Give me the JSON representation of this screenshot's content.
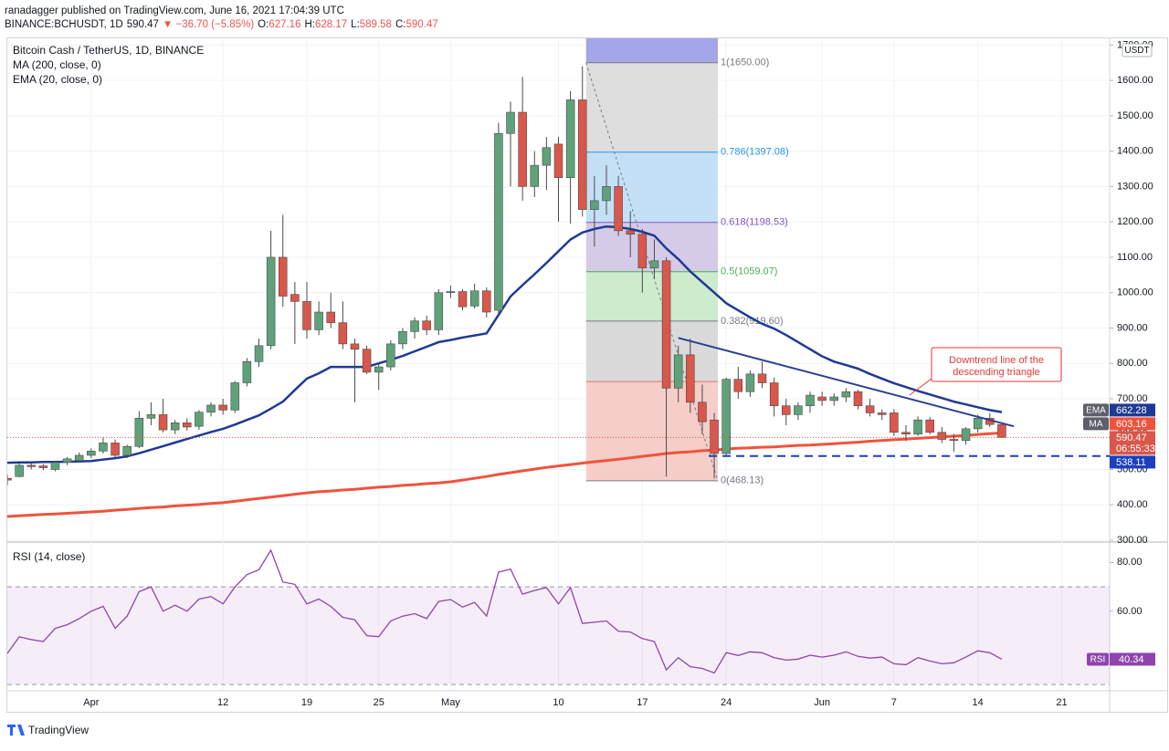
{
  "header": {
    "byline": "ranadagger published on TradingView.com, June 16, 2021 17:04:39 UTC",
    "symbol": "BINANCE:BCHUSDT, 1D",
    "last": "590.47",
    "change": "▼ −36.70 (−5.85%)",
    "ohlc": [
      [
        "O:",
        "627.16"
      ],
      [
        "H:",
        "628.17"
      ],
      [
        "L:",
        "589.58"
      ],
      [
        "C:",
        "590.47"
      ]
    ]
  },
  "footer": "TradingView",
  "chart_data": [
    {
      "type": "candlestick",
      "currency": "USDT",
      "countdown": "06:55:33",
      "candles": {
        "name": "Bitcoin Cash / TetherUS, 1D, BINANCE",
        "up_color": "#5fa27a",
        "down_color": "#d9574b",
        "wick_color": "#4a4a4a",
        "x": [
          "Mar 25",
          "Mar 26",
          "Mar 27",
          "Mar 28",
          "Mar 29",
          "Mar 30",
          "Mar 31",
          "Apr 1",
          "Apr 2",
          "Apr 3",
          "Apr 4",
          "Apr 5",
          "Apr 6",
          "Apr 7",
          "Apr 8",
          "Apr 9",
          "Apr 10",
          "Apr 11",
          "Apr 12",
          "Apr 13",
          "Apr 14",
          "Apr 15",
          "Apr 16",
          "Apr 17",
          "Apr 18",
          "Apr 19",
          "Apr 20",
          "Apr 21",
          "Apr 22",
          "Apr 23",
          "Apr 24",
          "Apr 25",
          "Apr 26",
          "Apr 27",
          "Apr 28",
          "Apr 29",
          "Apr 30",
          "May 1",
          "May 2",
          "May 3",
          "May 4",
          "May 5",
          "May 6",
          "May 7",
          "May 8",
          "May 9",
          "May 10",
          "May 11",
          "May 12",
          "May 13",
          "May 14",
          "May 15",
          "May 16",
          "May 17",
          "May 18",
          "May 19",
          "May 20",
          "May 21",
          "May 22",
          "May 23",
          "May 24",
          "May 25",
          "May 26",
          "May 27",
          "May 28",
          "May 29",
          "May 30",
          "May 31",
          "Jun 1",
          "Jun 2",
          "Jun 3",
          "Jun 4",
          "Jun 5",
          "Jun 6",
          "Jun 7",
          "Jun 8",
          "Jun 9",
          "Jun 10",
          "Jun 11",
          "Jun 12",
          "Jun 13",
          "Jun 14",
          "Jun 15",
          "Jun 16"
        ],
        "open": [
          475,
          480,
          512,
          510,
          500,
          520,
          525,
          540,
          552,
          575,
          540,
          565,
          645,
          655,
          612,
          632,
          622,
          662,
          682,
          668,
          745,
          805,
          850,
          1100,
          995,
          975,
          895,
          945,
          915,
          855,
          840,
          775,
          790,
          855,
          890,
          920,
          895,
          1000,
          1003,
          962,
          1005,
          950,
          1450,
          1510,
          1300,
          1360,
          1420,
          1325,
          1545,
          1235,
          1260,
          1300,
          1175,
          1165,
          1070,
          1090,
          730,
          824,
          690,
          640,
          545,
          755,
          720,
          770,
          745,
          680,
          655,
          680,
          705,
          695,
          705,
          720,
          680,
          660,
          660,
          605,
          600,
          640,
          605,
          585,
          582,
          615,
          645,
          627.16
        ],
        "high": [
          485,
          518,
          520,
          515,
          525,
          535,
          548,
          560,
          590,
          585,
          570,
          665,
          690,
          700,
          640,
          645,
          668,
          690,
          700,
          750,
          815,
          870,
          1175,
          1220,
          1030,
          1030,
          975,
          1000,
          975,
          870,
          850,
          800,
          865,
          900,
          930,
          935,
          1010,
          1020,
          1010,
          1025,
          1015,
          1480,
          1540,
          1610,
          1400,
          1440,
          1440,
          1570,
          1640,
          1330,
          1360,
          1330,
          1230,
          1180,
          1150,
          1100,
          850,
          870,
          740,
          660,
          760,
          790,
          780,
          805,
          760,
          700,
          690,
          720,
          720,
          715,
          730,
          725,
          700,
          670,
          670,
          625,
          650,
          648,
          620,
          600,
          620,
          655,
          660,
          628.17
        ],
        "low": [
          455,
          478,
          500,
          498,
          495,
          512,
          520,
          532,
          545,
          535,
          532,
          560,
          625,
          605,
          600,
          610,
          612,
          650,
          655,
          660,
          735,
          790,
          840,
          960,
          855,
          870,
          880,
          900,
          840,
          690,
          770,
          725,
          780,
          840,
          870,
          880,
          880,
          985,
          950,
          955,
          930,
          940,
          1300,
          1260,
          1270,
          1290,
          1200,
          1195,
          1215,
          1130,
          1220,
          1160,
          1100,
          1000,
          1040,
          480,
          690,
          660,
          600,
          475,
          540,
          700,
          705,
          730,
          650,
          625,
          640,
          660,
          680,
          680,
          690,
          670,
          650,
          640,
          595,
          580,
          595,
          600,
          575,
          550,
          570,
          605,
          620,
          589.58
        ],
        "close": [
          470,
          512,
          508,
          505,
          520,
          530,
          540,
          552,
          575,
          540,
          565,
          645,
          655,
          612,
          632,
          620,
          662,
          682,
          668,
          745,
          805,
          850,
          1100,
          990,
          975,
          895,
          945,
          915,
          855,
          840,
          775,
          790,
          855,
          890,
          920,
          895,
          1000,
          1003,
          960,
          1005,
          945,
          1450,
          1510,
          1300,
          1360,
          1410,
          1325,
          1545,
          1235,
          1260,
          1300,
          1175,
          1165,
          1070,
          1090,
          730,
          824,
          690,
          635,
          545,
          755,
          720,
          770,
          745,
          680,
          655,
          680,
          710,
          695,
          705,
          720,
          680,
          660,
          655,
          605,
          600,
          640,
          605,
          585,
          582,
          615,
          645,
          627.16,
          590.47
        ]
      },
      "series": [
        {
          "name": "MA (200, close, 0)",
          "badge": "MA",
          "color": "#f0533c",
          "values": [
            367,
            369,
            371,
            373,
            374,
            376,
            378,
            380,
            382,
            385,
            387,
            390,
            392,
            394,
            397,
            399,
            401,
            404,
            406,
            410,
            414,
            418,
            422,
            426,
            430,
            434,
            437,
            439,
            442,
            444,
            447,
            450,
            452,
            455,
            457,
            460,
            462,
            465,
            470,
            475,
            480,
            486,
            491,
            496,
            501,
            506,
            510,
            514,
            518,
            522,
            525,
            529,
            533,
            537,
            541,
            545,
            548,
            550,
            553,
            555,
            558,
            560,
            561,
            563,
            564,
            566,
            568,
            569,
            571,
            573,
            575,
            577,
            580,
            582,
            584,
            586,
            588,
            590,
            592,
            594,
            596,
            599,
            601,
            603.16
          ]
        },
        {
          "name": "EMA (20, close, 0)",
          "badge": "EMA",
          "color": "#1f3a93",
          "values": [
            519,
            520,
            520,
            521,
            521,
            522,
            523,
            524,
            528,
            532,
            537,
            546,
            556,
            566,
            576,
            586,
            596,
            606,
            615,
            627,
            640,
            653,
            672,
            692,
            725,
            757,
            772,
            790,
            790,
            790,
            790,
            800,
            810,
            821,
            834,
            847,
            860,
            866,
            873,
            879,
            885,
            937,
            989,
            1021,
            1052,
            1084,
            1117,
            1150,
            1170,
            1180,
            1187,
            1185,
            1180,
            1172,
            1161,
            1125,
            1095,
            1060,
            1030,
            1000,
            970,
            950,
            930,
            912,
            898,
            880,
            860,
            840,
            820,
            805,
            795,
            785,
            770,
            757,
            744,
            733,
            722,
            712,
            702,
            692,
            684,
            676,
            668,
            662.28
          ]
        }
      ],
      "fib": {
        "x": [
          "May 12",
          "May 23"
        ],
        "top_fill": "#a3a6e8",
        "levels": [
          {
            "value": 1650,
            "label": "1(1650.00)",
            "color": "#787b86",
            "fill": "#dedede"
          },
          {
            "value": 1397.08,
            "label": "0.786(1397.08)",
            "color": "#2196f3",
            "fill": "#c4e0f7"
          },
          {
            "value": 1198.53,
            "label": "0.618(1198.53)",
            "color": "#7e57c2",
            "fill": "#d5cbe8"
          },
          {
            "value": 1059.07,
            "label": "0.5(1059.07)",
            "color": "#4caf50",
            "fill": "#cdebcd"
          },
          {
            "value": 919.6,
            "label": "0.382(919.60)",
            "color": "#787b86",
            "fill": "#dadada"
          },
          {
            "value": 748.66,
            "label": null,
            "color": "#e57373",
            "fill": "#f5cdc9"
          },
          {
            "value": 468.13,
            "label": "0(468.13)",
            "color": "#787b86"
          }
        ]
      },
      "trendline": {
        "x": [
          "May 20",
          "Jun 17"
        ],
        "values": [
          872,
          622
        ],
        "color": "#2a3f8f"
      },
      "support": {
        "x": "May 23",
        "value": 538.11,
        "color": "#1b3fbf"
      },
      "annotation": {
        "text": [
          "Downtrend line of the",
          "descending triangle"
        ],
        "color": "#e53935"
      },
      "xlim": [
        "Mar 25",
        "Jun 25"
      ],
      "xticks": [
        {
          "value": "Apr 1",
          "label": "Apr"
        },
        {
          "value": "Apr 12",
          "label": "12"
        },
        {
          "value": "Apr 19",
          "label": "19"
        },
        {
          "value": "Apr 25",
          "label": "25"
        },
        {
          "value": "May 1",
          "label": "May"
        },
        {
          "value": "May 10",
          "label": "10"
        },
        {
          "value": "May 17",
          "label": "17"
        },
        {
          "value": "May 24",
          "label": "24"
        },
        {
          "value": "Jun 1",
          "label": "Jun"
        },
        {
          "value": "Jun 7",
          "label": "7"
        },
        {
          "value": "Jun 14",
          "label": "14"
        },
        {
          "value": "Jun 21",
          "label": "21"
        }
      ],
      "ylim": [
        300,
        1719
      ],
      "yticks": [
        {
          "value": 300,
          "label": "300.00"
        },
        {
          "value": 400,
          "label": "400.00"
        },
        {
          "value": 500,
          "label": "500.00"
        },
        {
          "value": 600,
          "label": "600.00"
        },
        {
          "value": 700,
          "label": "700.00"
        },
        {
          "value": 800,
          "label": "800.00"
        },
        {
          "value": 900,
          "label": "900.00"
        },
        {
          "value": 1000,
          "label": "1000.00"
        },
        {
          "value": 1100,
          "label": "1100.00"
        },
        {
          "value": 1200,
          "label": "1200.00"
        },
        {
          "value": 1300,
          "label": "1300.00"
        },
        {
          "value": 1400,
          "label": "1400.00"
        },
        {
          "value": 1500,
          "label": "1500.00"
        },
        {
          "value": 1600,
          "label": "1600.00"
        },
        {
          "value": 1700,
          "label": "1700.00"
        }
      ],
      "grid": true
    },
    {
      "type": "line",
      "series": [
        {
          "name": "RSI (14, close)",
          "badge": "RSI",
          "color": "#8e44ad",
          "values": [
            42.7,
            49.5,
            48.4,
            47.6,
            53,
            54.5,
            57,
            60,
            62,
            53,
            58,
            68,
            70,
            60,
            62.5,
            60,
            65,
            66,
            63,
            70,
            75,
            77,
            85,
            72,
            71,
            63,
            65,
            62,
            57.5,
            56.5,
            50,
            49.6,
            56,
            58,
            59,
            57,
            64,
            64.8,
            61.7,
            63.6,
            58,
            76,
            77.3,
            67,
            68.5,
            69.7,
            63,
            69.7,
            55,
            55.5,
            56,
            51.8,
            51.5,
            48.8,
            47.6,
            36,
            41,
            37.3,
            36.6,
            34.7,
            43,
            41.9,
            43.4,
            43,
            41,
            40,
            40.4,
            42,
            41.2,
            42,
            43.4,
            41.5,
            40.8,
            41.2,
            38.5,
            38.1,
            41,
            39.6,
            38.5,
            38.9,
            41.2,
            43.8,
            43,
            40.34
          ]
        }
      ],
      "band": [
        30,
        70
      ],
      "band_color": "#8e44ad",
      "ylim": [
        27.8,
        87.6
      ],
      "yticks": [
        {
          "value": 60,
          "label": "60.00"
        },
        {
          "value": 80,
          "label": "80.00"
        }
      ]
    }
  ]
}
